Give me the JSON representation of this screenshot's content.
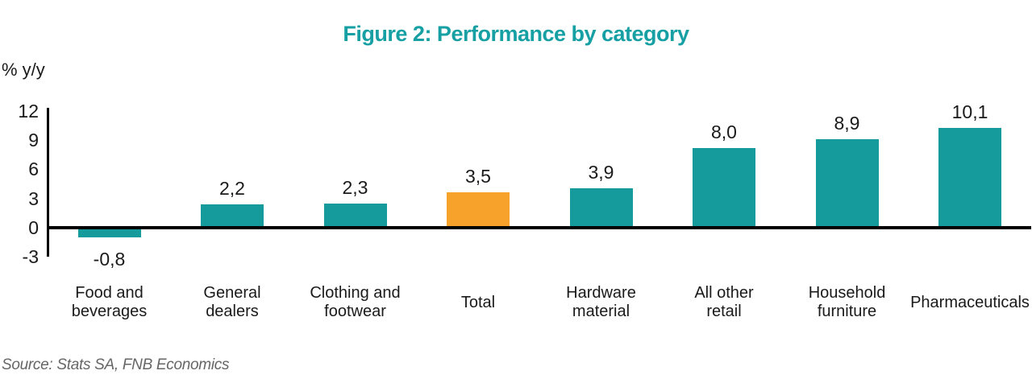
{
  "chart": {
    "title": "Figure 2: Performance by category",
    "ylabel": "% y/y",
    "source": "Source: Stats SA, FNB Economics"
  },
  "chart_data": {
    "type": "bar",
    "title": "Figure 2: Performance by category",
    "xlabel": "",
    "ylabel": "% y/y",
    "categories": [
      "Food and beverages",
      "General dealers",
      "Clothing and footwear",
      "Total",
      "Hardware material",
      "All other retail",
      "Household furniture",
      "Pharmaceuticals"
    ],
    "category_lines": [
      [
        "Food and",
        "beverages"
      ],
      [
        "General",
        "dealers"
      ],
      [
        "Clothing and",
        "footwear"
      ],
      [
        "Total"
      ],
      [
        "Hardware",
        "material"
      ],
      [
        "All other",
        "retail"
      ],
      [
        "Household",
        "furniture"
      ],
      [
        "Pharmaceuticals"
      ]
    ],
    "values": [
      -0.8,
      2.2,
      2.3,
      3.5,
      3.9,
      8.0,
      8.9,
      10.1
    ],
    "value_labels": [
      "-0,8",
      "2,2",
      "2,3",
      "3,5",
      "3,9",
      "8,0",
      "8,9",
      "10,1"
    ],
    "decimal_separator": ",",
    "yticks": [
      12,
      9,
      6,
      3,
      0,
      -3
    ],
    "ylim": [
      -3,
      12
    ],
    "grid": false,
    "legend": false,
    "highlight_index": 3,
    "colors": {
      "bar": "#169B9C",
      "highlight_bar": "#F7A32B",
      "title": "#17A0A4",
      "axis": "#000000",
      "text": "#1a1a1a",
      "source": "#666666"
    },
    "source": "Source: Stats SA, FNB Economics"
  }
}
